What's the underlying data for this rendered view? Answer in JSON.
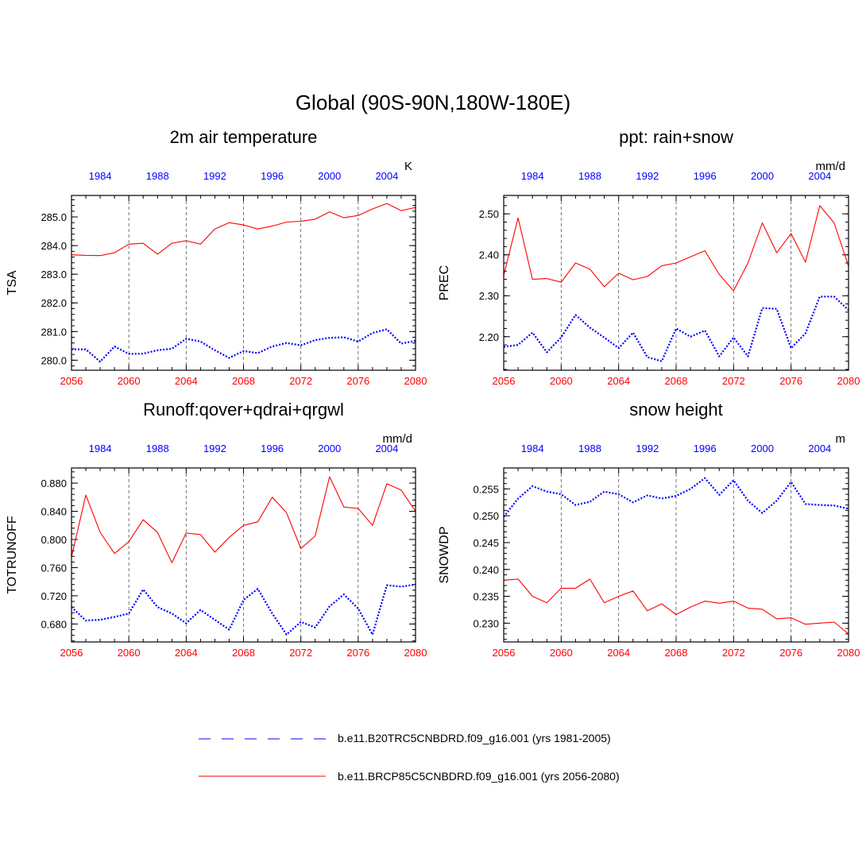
{
  "main_title": "Global (90S-90N,180W-180E)",
  "colors": {
    "historical": "#0000ff",
    "future": "#ff0000",
    "axis": "#000000",
    "gridline": "#555555"
  },
  "legend": {
    "historical": "b.e11.B20TRC5CNBDRD.f09_g16.001 (yrs 1981-2005)",
    "future": "b.e11.BRCP85C5CNBDRD.f09_g16.001 (yrs 2056-2080)"
  },
  "chart_data": [
    {
      "type": "line",
      "title": "2m air temperature",
      "units": "K",
      "ylabel": "TSA",
      "ylim": [
        279.65,
        285.75
      ],
      "yticks": [
        280.0,
        281.0,
        282.0,
        283.0,
        284.0,
        285.0
      ],
      "ytick_labels": [
        "280.0",
        "281.0",
        "282.0",
        "283.0",
        "284.0",
        "285.0"
      ],
      "xlim_bottom": [
        2056,
        2080
      ],
      "xticks_bottom": [
        "2056",
        "2060",
        "2064",
        "2068",
        "2072",
        "2076",
        "2080"
      ],
      "xticks_top": [
        "1984",
        "1988",
        "1992",
        "1996",
        "2000",
        "2004"
      ],
      "gridlines_x": [
        2060,
        2064,
        2068,
        2072,
        2076
      ],
      "series": [
        {
          "name": "b.e11.BRCP85C5CNBDRD.f09_g16.001 (yrs 2056-2080)",
          "style": "solid",
          "x": [
            2056,
            2057,
            2058,
            2059,
            2060,
            2061,
            2062,
            2063,
            2064,
            2065,
            2066,
            2067,
            2068,
            2069,
            2070,
            2071,
            2072,
            2073,
            2074,
            2075,
            2076,
            2077,
            2078,
            2079,
            2080
          ],
          "values": [
            283.68,
            283.66,
            283.65,
            283.75,
            284.05,
            284.08,
            283.7,
            284.08,
            284.17,
            284.05,
            284.58,
            284.8,
            284.72,
            284.58,
            284.68,
            284.82,
            284.85,
            284.92,
            285.18,
            284.97,
            285.05,
            285.28,
            285.47,
            285.22,
            285.33
          ]
        },
        {
          "name": "b.e11.B20TRC5CNBDRD.f09_g16.001 (yrs 1981-2005)",
          "style": "dotted",
          "x": [
            2056,
            2057,
            2058,
            2059,
            2060,
            2061,
            2062,
            2063,
            2064,
            2065,
            2066,
            2067,
            2068,
            2069,
            2070,
            2071,
            2072,
            2073,
            2074,
            2075,
            2076,
            2077,
            2078,
            2079,
            2080
          ],
          "values": [
            280.38,
            280.38,
            279.95,
            280.48,
            280.22,
            280.23,
            280.35,
            280.4,
            280.75,
            280.65,
            280.35,
            280.08,
            280.32,
            280.25,
            280.48,
            280.6,
            280.52,
            280.7,
            280.78,
            280.8,
            280.65,
            280.95,
            281.08,
            280.58,
            280.68
          ]
        }
      ]
    },
    {
      "type": "line",
      "title": "ppt: rain+snow",
      "units": "mm/d",
      "ylabel": "PREC",
      "ylim": [
        2.118,
        2.545
      ],
      "yticks": [
        2.2,
        2.3,
        2.4,
        2.5
      ],
      "ytick_labels": [
        "2.20",
        "2.30",
        "2.40",
        "2.50"
      ],
      "xlim_bottom": [
        2056,
        2080
      ],
      "xticks_bottom": [
        "2056",
        "2060",
        "2064",
        "2068",
        "2072",
        "2076",
        "2080"
      ],
      "xticks_top": [
        "1984",
        "1988",
        "1992",
        "1996",
        "2000",
        "2004"
      ],
      "gridlines_x": [
        2060,
        2064,
        2068,
        2072,
        2076
      ],
      "series": [
        {
          "name": "b.e11.BRCP85C5CNBDRD.f09_g16.001 (yrs 2056-2080)",
          "style": "solid",
          "x": [
            2056,
            2057,
            2058,
            2059,
            2060,
            2061,
            2062,
            2063,
            2064,
            2065,
            2066,
            2067,
            2068,
            2069,
            2070,
            2071,
            2072,
            2073,
            2074,
            2075,
            2076,
            2077,
            2078,
            2079,
            2080
          ],
          "values": [
            2.35,
            2.49,
            2.34,
            2.342,
            2.333,
            2.38,
            2.365,
            2.322,
            2.355,
            2.339,
            2.347,
            2.373,
            2.38,
            2.395,
            2.41,
            2.352,
            2.312,
            2.38,
            2.478,
            2.405,
            2.452,
            2.382,
            2.52,
            2.478,
            2.372
          ]
        },
        {
          "name": "b.e11.B20TRC5CNBDRD.f09_g16.001 (yrs 1981-2005)",
          "style": "dotted",
          "x": [
            2056,
            2057,
            2058,
            2059,
            2060,
            2061,
            2062,
            2063,
            2064,
            2065,
            2066,
            2067,
            2068,
            2069,
            2070,
            2071,
            2072,
            2073,
            2074,
            2075,
            2076,
            2077,
            2078,
            2079,
            2080
          ],
          "values": [
            2.175,
            2.18,
            2.21,
            2.162,
            2.198,
            2.253,
            2.222,
            2.198,
            2.172,
            2.21,
            2.15,
            2.14,
            2.22,
            2.2,
            2.215,
            2.152,
            2.198,
            2.152,
            2.27,
            2.268,
            2.172,
            2.208,
            2.298,
            2.298,
            2.265
          ]
        }
      ]
    },
    {
      "type": "line",
      "title": "Runoff:qover+qdrai+qrgwl",
      "units": "mm/d",
      "ylabel": "TOTRUNOFF",
      "ylim": [
        0.6545,
        0.9015
      ],
      "yticks": [
        0.68,
        0.72,
        0.76,
        0.8,
        0.84,
        0.88
      ],
      "ytick_labels": [
        "0.680",
        "0.720",
        "0.760",
        "0.800",
        "0.840",
        "0.880"
      ],
      "xlim_bottom": [
        2056,
        2080
      ],
      "xticks_bottom": [
        "2056",
        "2060",
        "2064",
        "2068",
        "2072",
        "2076",
        "2080"
      ],
      "xticks_top": [
        "1984",
        "1988",
        "1992",
        "1996",
        "2000",
        "2004"
      ],
      "gridlines_x": [
        2060,
        2064,
        2068,
        2072,
        2076
      ],
      "series": [
        {
          "name": "b.e11.BRCP85C5CNBDRD.f09_g16.001 (yrs 2056-2080)",
          "style": "solid",
          "x": [
            2056,
            2057,
            2058,
            2059,
            2060,
            2061,
            2062,
            2063,
            2064,
            2065,
            2066,
            2067,
            2068,
            2069,
            2070,
            2071,
            2072,
            2073,
            2074,
            2075,
            2076,
            2077,
            2078,
            2079,
            2080
          ],
          "values": [
            0.775,
            0.863,
            0.81,
            0.78,
            0.797,
            0.828,
            0.81,
            0.767,
            0.809,
            0.807,
            0.782,
            0.803,
            0.82,
            0.825,
            0.86,
            0.838,
            0.787,
            0.805,
            0.889,
            0.846,
            0.844,
            0.82,
            0.879,
            0.87,
            0.84
          ]
        },
        {
          "name": "b.e11.B20TRC5CNBDRD.f09_g16.001 (yrs 1981-2005)",
          "style": "dotted",
          "x": [
            2056,
            2057,
            2058,
            2059,
            2060,
            2061,
            2062,
            2063,
            2064,
            2065,
            2066,
            2067,
            2068,
            2069,
            2070,
            2071,
            2072,
            2073,
            2074,
            2075,
            2076,
            2077,
            2078,
            2079,
            2080
          ],
          "values": [
            0.704,
            0.685,
            0.686,
            0.69,
            0.695,
            0.729,
            0.704,
            0.695,
            0.681,
            0.7,
            0.686,
            0.672,
            0.714,
            0.73,
            0.695,
            0.665,
            0.683,
            0.675,
            0.705,
            0.722,
            0.702,
            0.665,
            0.735,
            0.733,
            0.736
          ]
        }
      ]
    },
    {
      "type": "line",
      "title": "snow height",
      "units": "m",
      "ylabel": "SNOWDP",
      "ylim": [
        0.2265,
        0.2589
      ],
      "yticks": [
        0.23,
        0.235,
        0.24,
        0.245,
        0.25,
        0.255
      ],
      "ytick_labels": [
        "0.230",
        "0.235",
        "0.240",
        "0.245",
        "0.250",
        "0.255"
      ],
      "xlim_bottom": [
        2056,
        2080
      ],
      "xticks_bottom": [
        "2056",
        "2060",
        "2064",
        "2068",
        "2072",
        "2076",
        "2080"
      ],
      "xticks_top": [
        "1984",
        "1988",
        "1992",
        "1996",
        "2000",
        "2004"
      ],
      "gridlines_x": [
        2060,
        2064,
        2068,
        2072,
        2076
      ],
      "series": [
        {
          "name": "b.e11.BRCP85C5CNBDRD.f09_g16.001 (yrs 2056-2080)",
          "style": "solid",
          "x": [
            2056,
            2057,
            2058,
            2059,
            2060,
            2061,
            2062,
            2063,
            2064,
            2065,
            2066,
            2067,
            2068,
            2069,
            2070,
            2071,
            2072,
            2073,
            2074,
            2075,
            2076,
            2077,
            2078,
            2079,
            2080
          ],
          "values": [
            0.238,
            0.2382,
            0.235,
            0.2338,
            0.2365,
            0.2365,
            0.2382,
            0.2338,
            0.235,
            0.236,
            0.2323,
            0.2336,
            0.2316,
            0.233,
            0.2341,
            0.2337,
            0.2341,
            0.2328,
            0.2326,
            0.2308,
            0.231,
            0.2298,
            0.23,
            0.2302,
            0.228
          ]
        },
        {
          "name": "b.e11.B20TRC5CNBDRD.f09_g16.001 (yrs 1981-2005)",
          "style": "dotted",
          "x": [
            2056,
            2057,
            2058,
            2059,
            2060,
            2061,
            2062,
            2063,
            2064,
            2065,
            2066,
            2067,
            2068,
            2069,
            2070,
            2071,
            2072,
            2073,
            2074,
            2075,
            2076,
            2077,
            2078,
            2079,
            2080
          ],
          "values": [
            0.2498,
            0.2532,
            0.2555,
            0.2545,
            0.254,
            0.252,
            0.2526,
            0.2545,
            0.254,
            0.2525,
            0.2538,
            0.2532,
            0.2537,
            0.255,
            0.257,
            0.2539,
            0.2566,
            0.2528,
            0.2505,
            0.2528,
            0.2563,
            0.2522,
            0.252,
            0.2519,
            0.2513
          ]
        }
      ]
    }
  ]
}
